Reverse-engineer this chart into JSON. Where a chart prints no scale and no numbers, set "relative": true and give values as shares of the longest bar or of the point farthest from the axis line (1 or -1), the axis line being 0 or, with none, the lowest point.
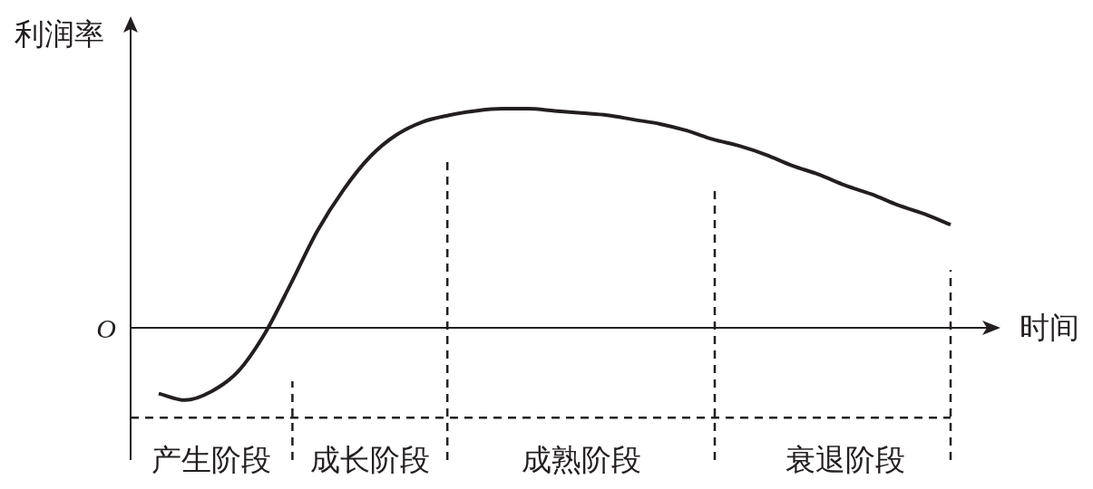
{
  "chart_data": {
    "type": "line",
    "relative": true,
    "xlabel": "时间",
    "ylabel": "利润率",
    "categories": [
      null,
      null,
      "产生阶段",
      null,
      null,
      null,
      null,
      null,
      "成长阶段",
      null,
      null,
      null,
      null,
      null,
      null,
      null,
      "成熟阶段",
      null,
      null,
      null,
      null,
      null,
      null,
      null,
      null,
      null,
      "衰退阶段",
      null,
      null,
      null,
      null
    ],
    "series": [
      {
        "color": "#231f20",
        "values": [
          -0.3,
          -0.33,
          -0.29,
          -0.2,
          -0.03,
          0.2,
          0.44,
          0.63,
          0.78,
          0.88,
          0.94,
          0.97,
          0.99,
          1,
          1,
          0.99,
          0.98,
          0.97,
          0.95,
          0.93,
          0.9,
          0.86,
          0.83,
          0.79,
          0.74,
          0.7,
          0.65,
          0.61,
          0.56,
          0.52,
          0.47
        ]
      }
    ],
    "ref_lines": [
      {
        "axis": "y",
        "value": -0.41,
        "color": "#231f20",
        "line_style": "dashed"
      }
    ],
    "annotations": [
      "O"
    ]
  }
}
